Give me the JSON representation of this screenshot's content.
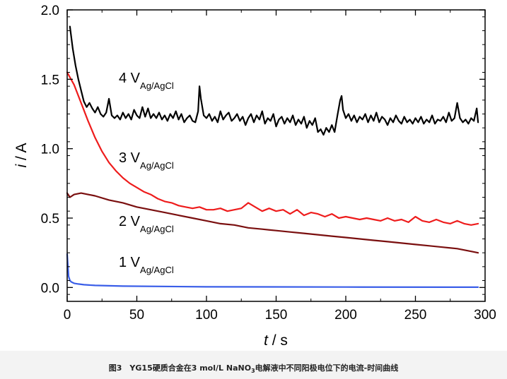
{
  "chart_data": {
    "type": "line",
    "xlabel_italic": "t",
    "xlabel_unit": " / s",
    "ylabel_italic": "i",
    "ylabel_unit": " / A",
    "xlim": [
      0,
      300
    ],
    "ylim": [
      -0.1,
      2.0
    ],
    "x_ticks": [
      0,
      50,
      100,
      150,
      200,
      250,
      300
    ],
    "x_tick_labels": [
      "0",
      "50",
      "100",
      "150",
      "200",
      "250",
      "300"
    ],
    "y_ticks": [
      0.0,
      0.5,
      1.0,
      1.5,
      2.0
    ],
    "y_tick_labels": [
      "0.0",
      "0.5",
      "1.0",
      "1.5",
      "2.0"
    ],
    "series": [
      {
        "name": "4 V Ag/AgCl",
        "label_main": "4 V",
        "label_sub": "Ag/AgCl",
        "color": "#000000",
        "x": [
          2,
          4,
          6,
          8,
          10,
          12,
          14,
          16,
          18,
          20,
          22,
          24,
          26,
          28,
          30,
          32,
          34,
          36,
          38,
          40,
          42,
          44,
          46,
          48,
          50,
          52,
          54,
          56,
          58,
          60,
          62,
          64,
          66,
          68,
          70,
          72,
          74,
          76,
          78,
          80,
          82,
          84,
          86,
          88,
          90,
          92,
          94,
          95,
          96,
          98,
          100,
          102,
          104,
          106,
          108,
          110,
          112,
          114,
          116,
          118,
          120,
          122,
          124,
          126,
          128,
          130,
          132,
          134,
          136,
          138,
          140,
          142,
          144,
          146,
          148,
          150,
          152,
          154,
          156,
          158,
          160,
          162,
          164,
          166,
          168,
          170,
          172,
          174,
          176,
          178,
          180,
          182,
          184,
          186,
          188,
          190,
          192,
          194,
          196,
          197,
          198,
          200,
          202,
          204,
          206,
          208,
          210,
          212,
          214,
          216,
          218,
          220,
          222,
          224,
          226,
          228,
          230,
          232,
          234,
          236,
          238,
          240,
          242,
          244,
          246,
          248,
          250,
          252,
          254,
          256,
          258,
          260,
          262,
          264,
          266,
          268,
          270,
          272,
          274,
          276,
          278,
          280,
          282,
          284,
          286,
          288,
          290,
          292,
          294,
          295
        ],
        "y": [
          1.88,
          1.72,
          1.6,
          1.5,
          1.42,
          1.34,
          1.3,
          1.33,
          1.29,
          1.26,
          1.3,
          1.25,
          1.23,
          1.26,
          1.36,
          1.24,
          1.22,
          1.24,
          1.21,
          1.26,
          1.22,
          1.25,
          1.21,
          1.28,
          1.24,
          1.22,
          1.3,
          1.23,
          1.29,
          1.22,
          1.25,
          1.22,
          1.26,
          1.21,
          1.24,
          1.2,
          1.25,
          1.22,
          1.27,
          1.21,
          1.25,
          1.19,
          1.22,
          1.24,
          1.2,
          1.19,
          1.27,
          1.45,
          1.36,
          1.24,
          1.22,
          1.25,
          1.2,
          1.23,
          1.19,
          1.27,
          1.21,
          1.24,
          1.26,
          1.2,
          1.22,
          1.25,
          1.2,
          1.23,
          1.17,
          1.22,
          1.25,
          1.19,
          1.24,
          1.21,
          1.27,
          1.18,
          1.22,
          1.2,
          1.25,
          1.16,
          1.21,
          1.23,
          1.18,
          1.22,
          1.19,
          1.24,
          1.17,
          1.21,
          1.18,
          1.23,
          1.15,
          1.2,
          1.17,
          1.22,
          1.12,
          1.14,
          1.1,
          1.15,
          1.12,
          1.17,
          1.12,
          1.24,
          1.35,
          1.38,
          1.28,
          1.22,
          1.25,
          1.2,
          1.24,
          1.19,
          1.23,
          1.21,
          1.25,
          1.19,
          1.24,
          1.2,
          1.26,
          1.19,
          1.23,
          1.21,
          1.17,
          1.22,
          1.19,
          1.24,
          1.2,
          1.18,
          1.23,
          1.19,
          1.21,
          1.18,
          1.22,
          1.19,
          1.23,
          1.18,
          1.21,
          1.19,
          1.24,
          1.18,
          1.21,
          1.2,
          1.23,
          1.19,
          1.26,
          1.2,
          1.22,
          1.33,
          1.22,
          1.19,
          1.21,
          1.18,
          1.22,
          1.2,
          1.29,
          1.19
        ]
      },
      {
        "name": "3 V Ag/AgCl",
        "label_main": "3 V",
        "label_sub": "Ag/AgCl",
        "color": "#ee1c1c",
        "x": [
          0,
          5,
          10,
          15,
          20,
          25,
          30,
          35,
          40,
          45,
          50,
          55,
          60,
          65,
          70,
          75,
          80,
          85,
          90,
          95,
          100,
          105,
          110,
          115,
          120,
          125,
          130,
          135,
          140,
          145,
          150,
          155,
          160,
          165,
          170,
          175,
          180,
          185,
          190,
          195,
          200,
          205,
          210,
          215,
          220,
          225,
          230,
          235,
          240,
          245,
          250,
          255,
          260,
          265,
          270,
          275,
          280,
          285,
          290,
          295
        ],
        "y": [
          1.55,
          1.46,
          1.33,
          1.2,
          1.08,
          0.98,
          0.9,
          0.84,
          0.79,
          0.75,
          0.72,
          0.69,
          0.67,
          0.64,
          0.62,
          0.61,
          0.59,
          0.58,
          0.57,
          0.58,
          0.56,
          0.56,
          0.57,
          0.55,
          0.56,
          0.57,
          0.61,
          0.58,
          0.55,
          0.57,
          0.55,
          0.56,
          0.53,
          0.56,
          0.52,
          0.54,
          0.53,
          0.51,
          0.53,
          0.5,
          0.51,
          0.5,
          0.49,
          0.5,
          0.49,
          0.48,
          0.5,
          0.48,
          0.49,
          0.47,
          0.51,
          0.48,
          0.47,
          0.49,
          0.47,
          0.46,
          0.48,
          0.46,
          0.45,
          0.46
        ]
      },
      {
        "name": "2 V Ag/AgCl",
        "label_main": "2 V",
        "label_sub": "Ag/AgCl",
        "color": "#7a0f0f",
        "x": [
          0,
          2,
          5,
          10,
          20,
          30,
          40,
          50,
          60,
          70,
          80,
          90,
          100,
          110,
          120,
          130,
          140,
          150,
          160,
          170,
          180,
          190,
          200,
          210,
          220,
          230,
          240,
          250,
          260,
          270,
          280,
          290,
          295
        ],
        "y": [
          0.68,
          0.65,
          0.67,
          0.68,
          0.66,
          0.63,
          0.61,
          0.58,
          0.56,
          0.54,
          0.52,
          0.5,
          0.48,
          0.46,
          0.45,
          0.43,
          0.42,
          0.41,
          0.4,
          0.39,
          0.38,
          0.37,
          0.36,
          0.35,
          0.34,
          0.33,
          0.32,
          0.31,
          0.3,
          0.29,
          0.28,
          0.26,
          0.25
        ]
      },
      {
        "name": "1 V Ag/AgCl",
        "label_main": "1 V",
        "label_sub": "Ag/AgCl",
        "color": "#3a5ee8",
        "x": [
          0,
          1,
          2,
          3,
          5,
          8,
          12,
          20,
          40,
          100,
          200,
          295
        ],
        "y": [
          0.24,
          0.08,
          0.05,
          0.04,
          0.03,
          0.025,
          0.02,
          0.015,
          0.01,
          0.005,
          0.003,
          0.002
        ]
      }
    ]
  },
  "caption": {
    "prefix": "图3　YG15硬质合金在3 mol/L NaNO",
    "sub": "3",
    "suffix": "电解液中不同阳极电位下的电流-时间曲线"
  }
}
